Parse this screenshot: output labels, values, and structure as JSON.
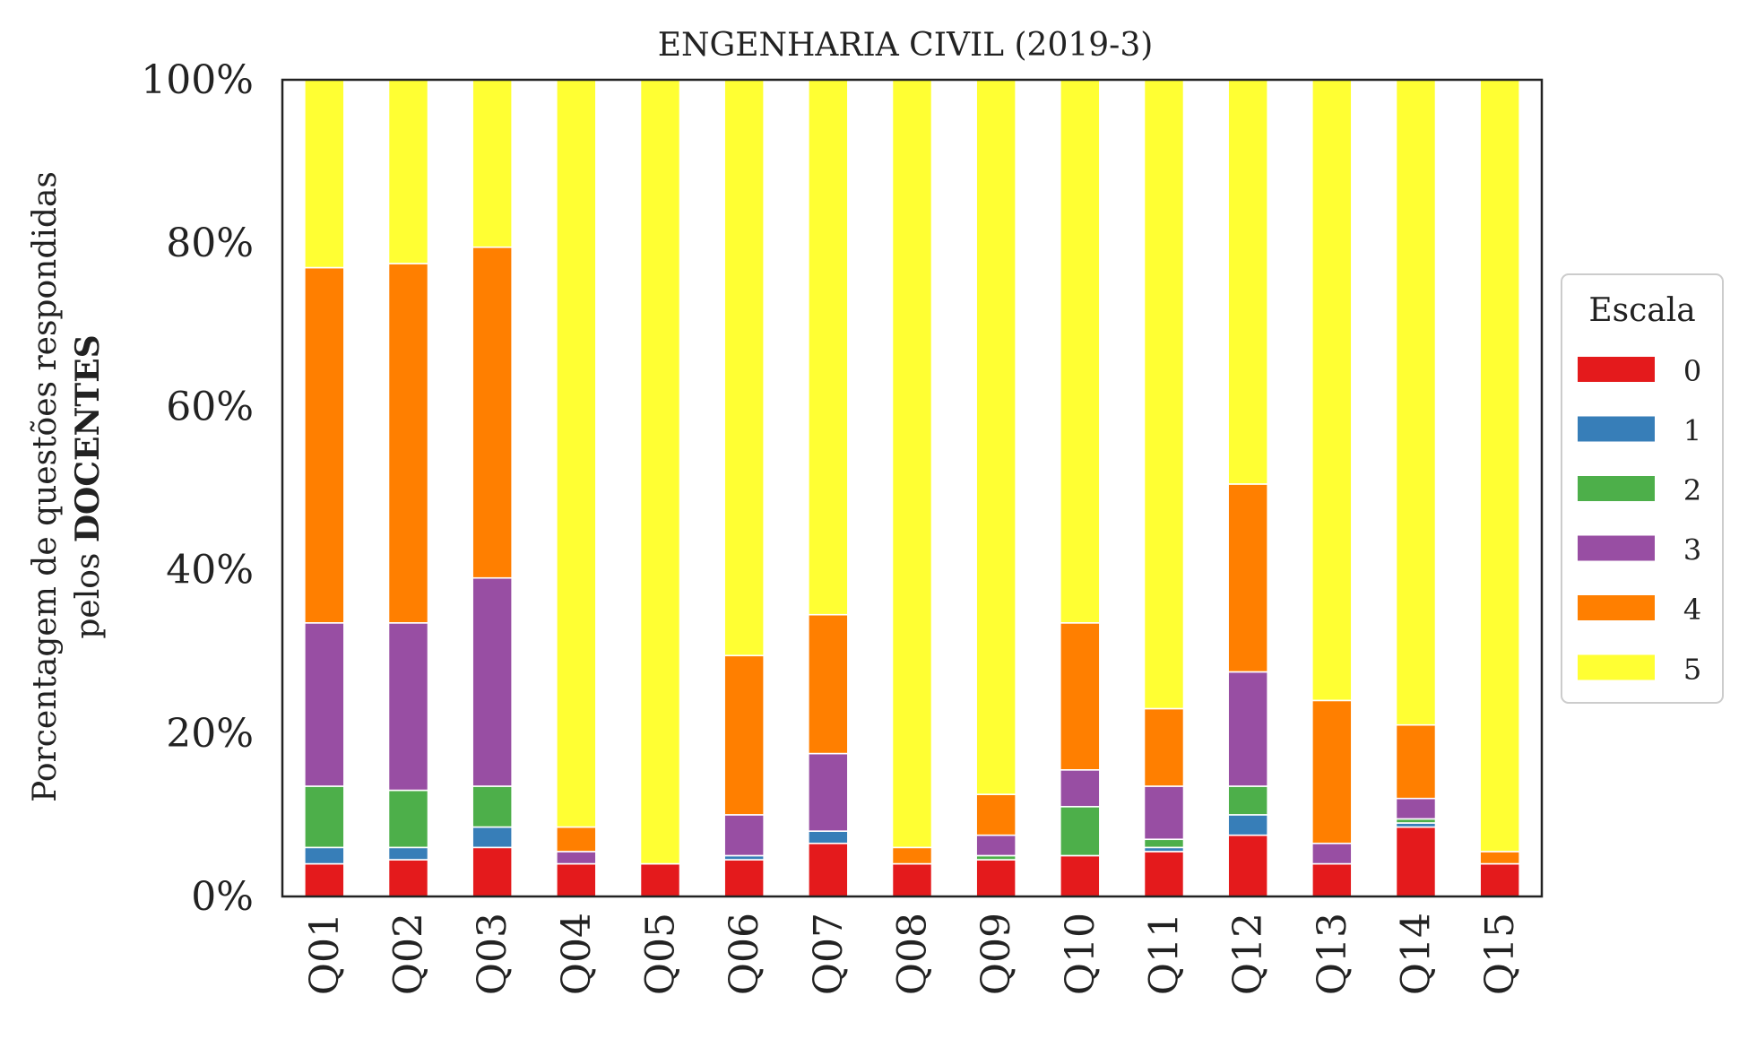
{
  "chart_data": {
    "type": "bar",
    "stacked": true,
    "title": "ENGENHARIA CIVIL (2019-3)",
    "ylabel_line1": "Porcentagem de questões respondidas",
    "ylabel_line2_prefix": "pelos ",
    "ylabel_line2_bold": "DOCENTES",
    "ylim": [
      0,
      100
    ],
    "yticks": [
      "0%",
      "20%",
      "40%",
      "60%",
      "80%",
      "100%"
    ],
    "ytick_values": [
      0,
      20,
      40,
      60,
      80,
      100
    ],
    "grid": false,
    "legend_title": "Escala",
    "legend_placement": "right",
    "categories": [
      "Q01",
      "Q02",
      "Q03",
      "Q04",
      "Q05",
      "Q06",
      "Q07",
      "Q08",
      "Q09",
      "Q10",
      "Q11",
      "Q12",
      "Q13",
      "Q14",
      "Q15"
    ],
    "series": [
      {
        "name": "0",
        "color": "#e41a1c",
        "values": [
          4.0,
          4.5,
          6.0,
          4.0,
          4.0,
          4.5,
          6.5,
          4.0,
          4.5,
          5.0,
          5.5,
          7.5,
          4.0,
          8.5,
          4.0
        ]
      },
      {
        "name": "1",
        "color": "#377eb8",
        "values": [
          2.0,
          1.5,
          2.5,
          0.0,
          0.0,
          0.5,
          1.5,
          0.0,
          0.0,
          0.0,
          0.5,
          2.5,
          0.0,
          0.5,
          0.0
        ]
      },
      {
        "name": "2",
        "color": "#4daf4a",
        "values": [
          7.5,
          7.0,
          5.0,
          0.0,
          0.0,
          0.0,
          0.0,
          0.0,
          0.5,
          6.0,
          1.0,
          3.5,
          0.0,
          0.5,
          0.0
        ]
      },
      {
        "name": "3",
        "color": "#984ea3",
        "values": [
          20.0,
          20.5,
          25.5,
          1.5,
          0.0,
          5.0,
          9.5,
          0.0,
          2.5,
          4.5,
          6.5,
          14.0,
          2.5,
          2.5,
          0.0
        ]
      },
      {
        "name": "4",
        "color": "#ff7f00",
        "values": [
          43.5,
          44.0,
          40.5,
          3.0,
          0.0,
          19.5,
          17.0,
          2.0,
          5.0,
          18.0,
          9.5,
          23.0,
          17.5,
          9.0,
          1.5
        ]
      },
      {
        "name": "5",
        "color": "#ffff33",
        "values": [
          23.0,
          22.5,
          20.5,
          91.5,
          96.0,
          70.5,
          65.5,
          94.0,
          87.5,
          66.5,
          77.0,
          49.5,
          76.0,
          79.0,
          94.5
        ]
      }
    ]
  }
}
